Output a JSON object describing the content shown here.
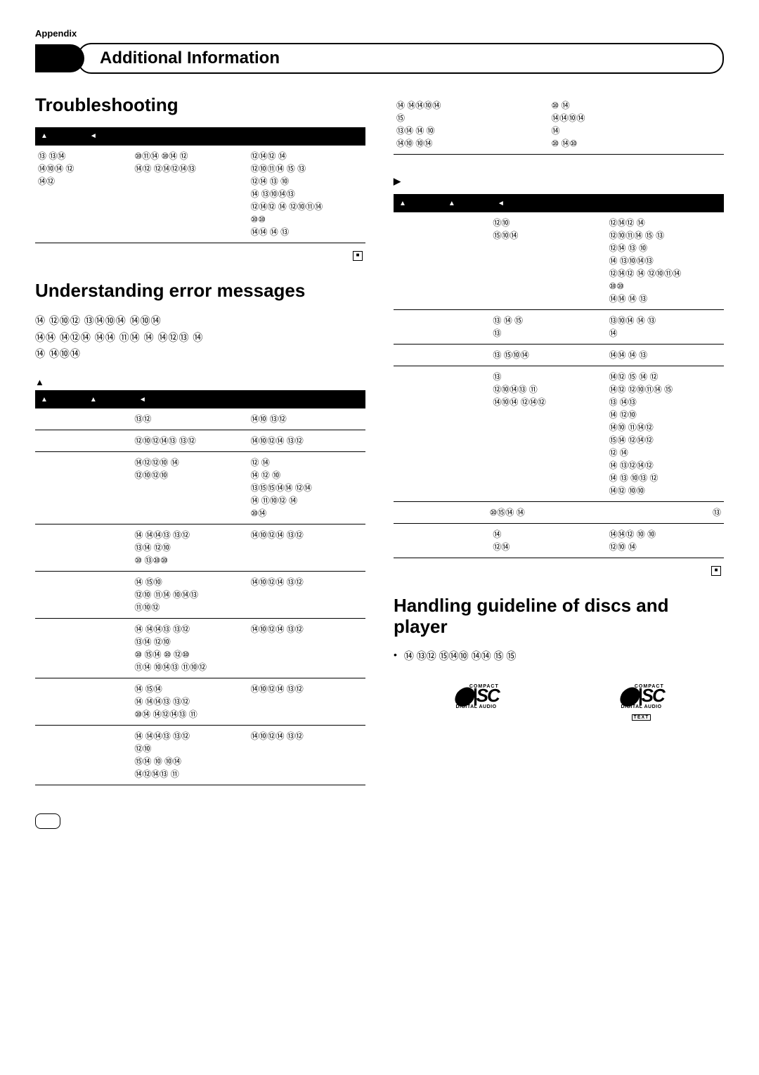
{
  "appendix_label": "Appendix",
  "header_title": "Additional Information",
  "left_col": {
    "trouble_heading": "Troubleshooting",
    "trouble_table": {
      "header_markers": [
        "▲",
        "◄"
      ],
      "rows": [
        {
          "c1": "⑬ ⑬⑭\n⑭⑩⑭ ⑫\n⑭⑫",
          "c2": "⑩⑪⑭ ⑩⑭ ⑫\n⑭⑫ ⑫⑭⑫⑭⑬",
          "c3": "⑫⑭⑫ ⑭\n⑫⑩⑪⑭ ⑮ ⑬\n⑫⑭ ⑬ ⑩\n⑭ ⑬⑩⑭⑬\n⑫⑭⑫ ⑭ ⑫⑩⑪⑭\n⑩⑩\n⑭⑭ ⑭ ⑬"
        }
      ]
    },
    "error_heading": "Understanding error messages",
    "error_intro": "⑭ ⑫⑩⑫ ⑬⑭⑩⑭ ⑭⑩⑭\n⑭⑭ ⑭⑫⑭ ⑭⑭ ⑪⑭ ⑭ ⑭⑫⑬ ⑭\n⑭ ⑭⑩⑭",
    "error_subhead": "▲",
    "error_table": {
      "header_markers": [
        "▲",
        "▲",
        "◄"
      ],
      "rows": [
        {
          "c1": "",
          "c2": "⑬⑫",
          "c3": "⑭⑩ ⑬⑫"
        },
        {
          "c1": "",
          "c2": "⑫⑩⑫⑭⑬ ⑬⑫",
          "c3": "⑭⑩⑫⑭ ⑬⑫"
        },
        {
          "c1": "",
          "c2": "⑭⑫⑫⑩ ⑭\n⑫⑩⑫⑩",
          "c3": "⑫ ⑭\n⑭ ⑫ ⑩\n⑬⑮⑮⑭⑭ ⑫⑭\n⑭ ⑪⑩⑫ ⑭\n⑩⑭"
        },
        {
          "c1": "",
          "c2": "⑭ ⑭⑭⑬ ⑬⑫\n⑬⑭ ⑫⑩\n⑩ ⑬⑩⑩",
          "c3": "⑭⑩⑫⑭ ⑬⑫"
        },
        {
          "c1": "",
          "c2": "⑭ ⑮⑩\n⑫⑩ ⑪⑭ ⑩⑭⑬\n⑪⑩⑫",
          "c3": "⑭⑩⑫⑭ ⑬⑫"
        },
        {
          "c1": "",
          "c2": "⑭ ⑭⑭⑬ ⑬⑫\n⑬⑭ ⑫⑩\n⑩ ⑮⑭ ⑩ ⑫⑩\n⑪⑭ ⑩⑭⑬ ⑪⑩⑫",
          "c3": "⑭⑩⑫⑭ ⑬⑫"
        },
        {
          "c1": "",
          "c2": "⑭ ⑮⑭\n⑭ ⑭⑭⑬ ⑬⑫\n⑩⑭ ⑭⑫⑭⑬ ⑪",
          "c3": "⑭⑩⑫⑭ ⑬⑫"
        },
        {
          "c1": "",
          "c2": "⑭ ⑭⑭⑬ ⑬⑫\n⑫⑩\n⑮⑭ ⑩ ⑩⑭\n⑭⑫⑭⑬ ⑪",
          "c3": "⑭⑩⑫⑭ ⑬⑫"
        }
      ]
    }
  },
  "right_col": {
    "top_block": {
      "rows": [
        {
          "c1": "⑭ ⑭⑭⑩⑭\n⑮\n⑬⑭ ⑭ ⑩\n⑭⑩ ⑩⑭",
          "c2": "⑩ ⑭\n        ⑭⑭⑩⑭\n⑭\n⑩ ⑭⑩"
        }
      ]
    },
    "continued_marker": "▶",
    "cont_table": {
      "header_markers": [
        "▲",
        "▲",
        "◄"
      ],
      "rows": [
        {
          "c1": "",
          "c2": "⑫⑩\n⑮⑩⑭",
          "c3": "⑫⑭⑫ ⑭\n⑫⑩⑪⑭ ⑮ ⑬\n⑫⑭ ⑬ ⑩\n⑭ ⑬⑩⑭⑬\n⑫⑭⑫ ⑭ ⑫⑩⑪⑭\n⑩⑩\n⑭⑭ ⑭ ⑬"
        },
        {
          "c1": "",
          "c2": "⑬ ⑭ ⑮\n⑬",
          "c3": "⑬⑩⑭ ⑭ ⑬\n⑭"
        },
        {
          "c1": "",
          "c2": "⑬ ⑮⑩⑭",
          "c3": "⑭⑭ ⑭ ⑬"
        },
        {
          "c1": "",
          "c2": "⑬\n⑫⑩⑭⑬ ⑪\n⑭⑩⑭ ⑫⑭⑫",
          "c3": "⑭⑫ ⑮ ⑭ ⑫\n⑭⑫ ⑫⑩⑪⑭ ⑮\n⑬ ⑭⑬\n⑭ ⑫⑩\n⑭⑩ ⑪⑭⑫\n⑮⑭ ⑫⑭⑫\n⑫ ⑭\n⑭ ⑬⑫⑭⑫\n⑭ ⑬ ⑩⑬ ⑫\n⑭⑫ ⑩⑩"
        },
        {
          "c1": "",
          "c2": "⑩⑮⑭ ⑭",
          "c3": "⑬",
          "center": true
        },
        {
          "c1": "",
          "c2": "⑭\n⑫⑭",
          "c3": "⑭⑭⑫ ⑩ ⑩\n⑫⑩ ⑭"
        }
      ]
    },
    "handling_heading": "Handling guideline of discs and player",
    "bullet": "⑭ ⑬⑫ ⑮⑭⑩ ⑭⑭ ⑮ ⑮",
    "logos": {
      "left": {
        "compact": "COMPACT",
        "disc": "disc",
        "da": "DIGITAL AUDIO"
      },
      "right": {
        "compact": "COMPACT",
        "disc": "disc",
        "da": "DIGITAL AUDIO",
        "text": "TEXT"
      }
    }
  }
}
